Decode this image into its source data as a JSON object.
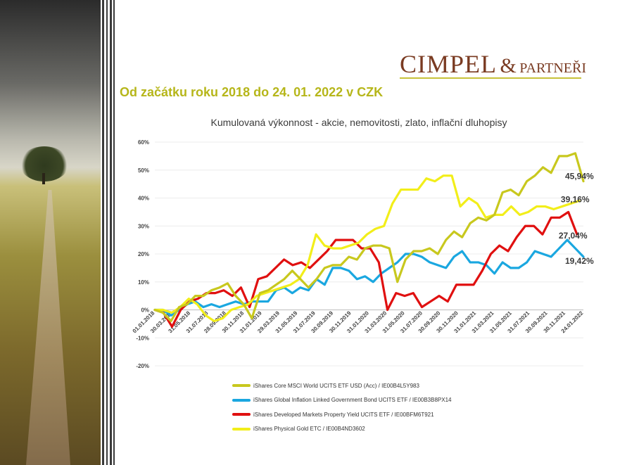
{
  "brand": {
    "name": "CIMPEL",
    "amp": "&",
    "sub": "PARTNEŘI"
  },
  "subtitle": "Od začátku roku 2018 do 24. 01. 2022 v CZK",
  "colors": {
    "accent": "#b6b61a",
    "brand": "#7a3b22"
  },
  "chart_data": {
    "type": "line",
    "title": "Kumulovaná výkonnost - akcie, nemovitosti, zlato, inflační dluhopisy",
    "ylim": [
      -20,
      60
    ],
    "yticks": [
      "-20%",
      "-10%",
      "0%",
      "10%",
      "20%",
      "30%",
      "40%",
      "50%",
      "60%"
    ],
    "xticks": [
      "01.01.2018",
      "30.03.2018",
      "31.05.2018",
      "31.07.2018",
      "28.09.2018",
      "30.11.2018",
      "31.01.2019",
      "29.03.2019",
      "31.05.2019",
      "31.07.2019",
      "30.09.2019",
      "30.11.2019",
      "31.01.2020",
      "31.03.2020",
      "31.05.2020",
      "31.07.2020",
      "30.09.2020",
      "30.11.2020",
      "31.01.2021",
      "31.03.2021",
      "31.05.2021",
      "31.07.2021",
      "30.09.2021",
      "30.11.2021",
      "24.01.2022"
    ],
    "grid": true,
    "legend_position": "bottom",
    "series": [
      {
        "name": "iShares Core MSCI World UCITS ETF USD (Acc) / IE00B4L5Y983",
        "color": "#c8c81e",
        "end_label": "45,94%",
        "values": [
          0,
          -1,
          -4,
          1,
          2,
          5,
          5,
          7,
          8,
          9.5,
          5,
          2,
          -3,
          6,
          7,
          9,
          11,
          14,
          11,
          8,
          11,
          15,
          16,
          16,
          19,
          18,
          22,
          23,
          23,
          22,
          10,
          18,
          21,
          21,
          22,
          20,
          25,
          28,
          26,
          31,
          33,
          32,
          34,
          42,
          43,
          41,
          46,
          48,
          51,
          49,
          55,
          55,
          56,
          46
        ]
      },
      {
        "name": "iShares Global Inflation Linked Government Bond UCITS ETF / IE00B3B8PX14",
        "color": "#1aa7e0",
        "end_label": "19,42%",
        "values": [
          0,
          0,
          -2,
          0,
          2,
          3,
          1,
          2,
          1,
          2,
          3,
          2,
          3,
          3,
          3,
          7,
          8,
          6,
          8,
          7,
          11,
          9,
          15,
          15,
          14,
          11,
          12,
          10,
          13,
          15,
          17,
          20,
          20,
          19,
          17,
          16,
          15,
          19,
          21,
          17,
          17,
          16,
          13,
          17,
          15,
          15,
          17,
          21,
          20,
          19,
          22,
          25,
          22,
          19
        ]
      },
      {
        "name": "iShares Developed Markets Property Yield UCITS ETF / IE00BFM6T921",
        "color": "#e01010",
        "end_label": "27,04%",
        "values": [
          0,
          -1,
          -6,
          0,
          3,
          4,
          6,
          6,
          7,
          5,
          8,
          1,
          11,
          12,
          15,
          18,
          16,
          17,
          15,
          18,
          21,
          25,
          25,
          25,
          22,
          22,
          17,
          0,
          6,
          5,
          6,
          1,
          3,
          5,
          3,
          9,
          9,
          9,
          14,
          20,
          23,
          21,
          26,
          30,
          30,
          27,
          33,
          33,
          35,
          27
        ]
      },
      {
        "name": "iShares Physical Gold ETC / IE00B4ND3602",
        "color": "#f2ee1a",
        "end_label": "39,16%",
        "values": [
          0,
          0,
          -1,
          1,
          4,
          2,
          -2,
          -4,
          -3,
          0,
          1,
          2,
          5,
          6,
          7,
          8,
          9,
          11,
          16,
          27,
          23,
          22,
          22,
          23,
          24,
          27,
          29,
          30,
          38,
          43,
          43,
          43,
          47,
          46,
          48,
          48,
          37,
          40,
          38,
          33,
          34,
          34,
          37,
          34,
          35,
          37,
          37,
          36,
          37,
          38,
          39
        ]
      }
    ]
  }
}
